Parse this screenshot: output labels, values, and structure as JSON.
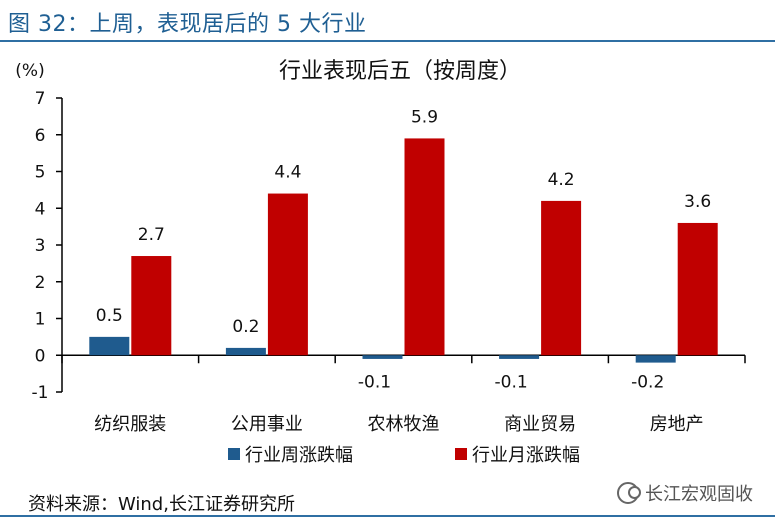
{
  "figure_title": "图 32：上周，表现居后的 5 大行业",
  "source_note": "资料来源：Wind,长江证券研究所",
  "watermark": "长江宏观固收",
  "colors": {
    "weekly": "#1f5b8e",
    "monthly": "#c00000",
    "accent": "#1f5f93"
  },
  "chart_data": {
    "type": "bar",
    "title": "行业表现后五（按周度）",
    "ylabel": "(%)",
    "xlabel": "",
    "ylim": [
      -1,
      7
    ],
    "yticks": [
      "-1",
      "0",
      "1",
      "2",
      "3",
      "4",
      "5",
      "6",
      "7"
    ],
    "grid": false,
    "legend_position": "bottom",
    "categories": [
      "纺织服装",
      "公用事业",
      "农林牧渔",
      "商业贸易",
      "房地产"
    ],
    "series": [
      {
        "name": "行业周涨跌幅",
        "values": [
          0.5,
          0.2,
          -0.1,
          -0.1,
          -0.2
        ],
        "labels": [
          "0.5",
          "0.2",
          "-0.1",
          "-0.1",
          "-0.2"
        ]
      },
      {
        "name": "行业月涨跌幅",
        "values": [
          2.7,
          4.4,
          5.9,
          4.2,
          3.6
        ],
        "labels": [
          "2.7",
          "4.4",
          "5.9",
          "4.2",
          "3.6"
        ]
      }
    ]
  }
}
